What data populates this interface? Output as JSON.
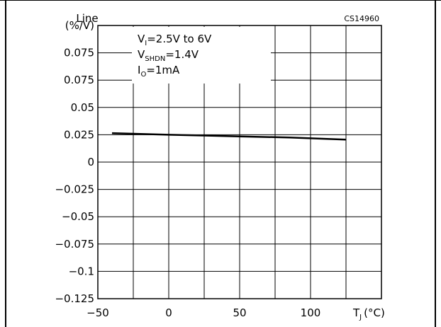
{
  "chart_data": {
    "type": "line",
    "title": "",
    "figure_code": "CS14960",
    "ylabel_line1": "Line",
    "ylabel_line2": "(%/V)",
    "xlabel_main": "T",
    "xlabel_sub": "J",
    "xlabel_unit": "(°C)",
    "xlim": [
      -50,
      150
    ],
    "x_ticks": [
      -50,
      0,
      50,
      100
    ],
    "x_tick_labels": [
      "−50",
      "0",
      "50",
      "100"
    ],
    "y_tick_labels": [
      "(%/V)",
      "0.075",
      "0.075",
      "0.05",
      "0.025",
      "0",
      "−0.025",
      "−0.05",
      "−0.075",
      "−0.1",
      "−0.125"
    ],
    "ylim": [
      -0.125,
      0.125
    ],
    "grid": true,
    "conditions": [
      {
        "main": "V",
        "sub": "I",
        "rest": "=2.5V  to  6V"
      },
      {
        "main": "V",
        "sub": "SHDN",
        "rest": "=1.4V"
      },
      {
        "main": "I",
        "sub": "O",
        "rest": "=1mA"
      }
    ],
    "series": [
      {
        "x": [
          -40,
          0,
          25,
          50,
          85,
          125
        ],
        "y": [
          0.0265,
          0.025,
          0.0243,
          0.0235,
          0.0225,
          0.0205
        ]
      }
    ]
  }
}
